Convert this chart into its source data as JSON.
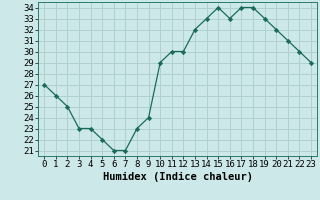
{
  "x": [
    0,
    1,
    2,
    3,
    4,
    5,
    6,
    7,
    8,
    9,
    10,
    11,
    12,
    13,
    14,
    15,
    16,
    17,
    18,
    19,
    20,
    21,
    22,
    23
  ],
  "y": [
    27,
    26,
    25,
    23,
    23,
    22,
    21,
    21,
    23,
    24,
    29,
    30,
    30,
    32,
    33,
    34,
    33,
    34,
    34,
    33,
    32,
    31,
    30,
    29
  ],
  "xlabel": "Humidex (Indice chaleur)",
  "xlim": [
    -0.5,
    23.5
  ],
  "ylim": [
    20.5,
    34.5
  ],
  "yticks": [
    21,
    22,
    23,
    24,
    25,
    26,
    27,
    28,
    29,
    30,
    31,
    32,
    33,
    34
  ],
  "xticks": [
    0,
    1,
    2,
    3,
    4,
    5,
    6,
    7,
    8,
    9,
    10,
    11,
    12,
    13,
    14,
    15,
    16,
    17,
    18,
    19,
    20,
    21,
    22,
    23
  ],
  "line_color": "#1a6b5a",
  "marker_color": "#1a6b5a",
  "bg_color": "#cce8e8",
  "grid_color": "#b0d0d0",
  "tick_fontsize": 6.5,
  "label_fontsize": 7.5
}
